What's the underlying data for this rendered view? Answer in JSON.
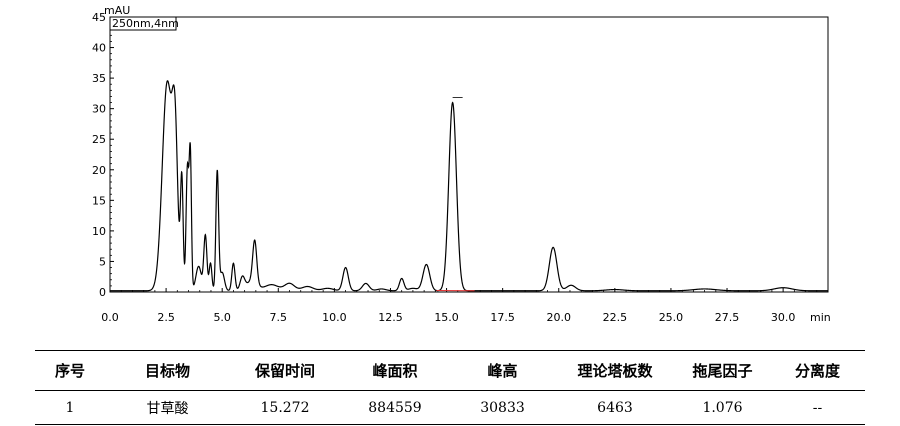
{
  "chart_data": {
    "type": "line",
    "ylabel": "mAU",
    "xlabel": "min",
    "legend": "250nm,4nm",
    "xlim": [
      0,
      32
    ],
    "ylim": [
      0,
      45
    ],
    "xticks": [
      "0.0",
      "2.5",
      "5.0",
      "7.5",
      "10.0",
      "12.5",
      "15.0",
      "17.5",
      "20.0",
      "22.5",
      "25.0",
      "27.5",
      "30.0"
    ],
    "yticks": [
      "0",
      "5",
      "10",
      "15",
      "20",
      "25",
      "30",
      "35",
      "40",
      "45"
    ],
    "baseline": 0.2,
    "peaks": [
      {
        "t": 2.55,
        "h": 34.0,
        "w": 0.22
      },
      {
        "t": 2.9,
        "h": 22.0,
        "w": 0.12
      },
      {
        "t": 3.2,
        "h": 18.0,
        "w": 0.06
      },
      {
        "t": 3.45,
        "h": 20.0,
        "w": 0.06
      },
      {
        "t": 3.58,
        "h": 22.0,
        "w": 0.05
      },
      {
        "t": 3.95,
        "h": 4.0,
        "w": 0.12
      },
      {
        "t": 4.25,
        "h": 9.0,
        "w": 0.07
      },
      {
        "t": 4.48,
        "h": 4.5,
        "w": 0.06
      },
      {
        "t": 4.78,
        "h": 19.5,
        "w": 0.06
      },
      {
        "t": 5.0,
        "h": 3.0,
        "w": 0.1
      },
      {
        "t": 5.5,
        "h": 4.5,
        "w": 0.07
      },
      {
        "t": 5.9,
        "h": 2.0,
        "w": 0.1
      },
      {
        "t": 6.3,
        "h": 1.5,
        "w": 0.25
      },
      {
        "t": 6.45,
        "h": 7.0,
        "w": 0.09
      },
      {
        "t": 7.2,
        "h": 1.0,
        "w": 0.3
      },
      {
        "t": 8.0,
        "h": 1.2,
        "w": 0.22
      },
      {
        "t": 8.8,
        "h": 0.7,
        "w": 0.25
      },
      {
        "t": 9.7,
        "h": 0.4,
        "w": 0.25
      },
      {
        "t": 10.5,
        "h": 3.8,
        "w": 0.12
      },
      {
        "t": 11.4,
        "h": 1.2,
        "w": 0.15
      },
      {
        "t": 12.1,
        "h": 0.3,
        "w": 0.2
      },
      {
        "t": 13.0,
        "h": 2.0,
        "w": 0.1
      },
      {
        "t": 13.5,
        "h": 0.4,
        "w": 0.2
      },
      {
        "t": 14.1,
        "h": 4.3,
        "w": 0.15
      },
      {
        "t": 15.27,
        "h": 30.8,
        "w": 0.17
      },
      {
        "t": 19.75,
        "h": 7.1,
        "w": 0.17
      },
      {
        "t": 20.55,
        "h": 0.9,
        "w": 0.2
      },
      {
        "t": 22.5,
        "h": 0.2,
        "w": 0.4
      },
      {
        "t": 26.5,
        "h": 0.3,
        "w": 0.5
      },
      {
        "t": 30.0,
        "h": 0.5,
        "w": 0.4
      }
    ],
    "integration_range": [
      14.55,
      16.25
    ]
  },
  "table": {
    "headers": [
      "序号",
      "目标物",
      "保留时间",
      "峰面积",
      "峰高",
      "理论塔板数",
      "拖尾因子",
      "分离度"
    ],
    "rows": [
      [
        "1",
        "甘草酸",
        "15.272",
        "884559",
        "30833",
        "6463",
        "1.076",
        "--"
      ]
    ]
  }
}
